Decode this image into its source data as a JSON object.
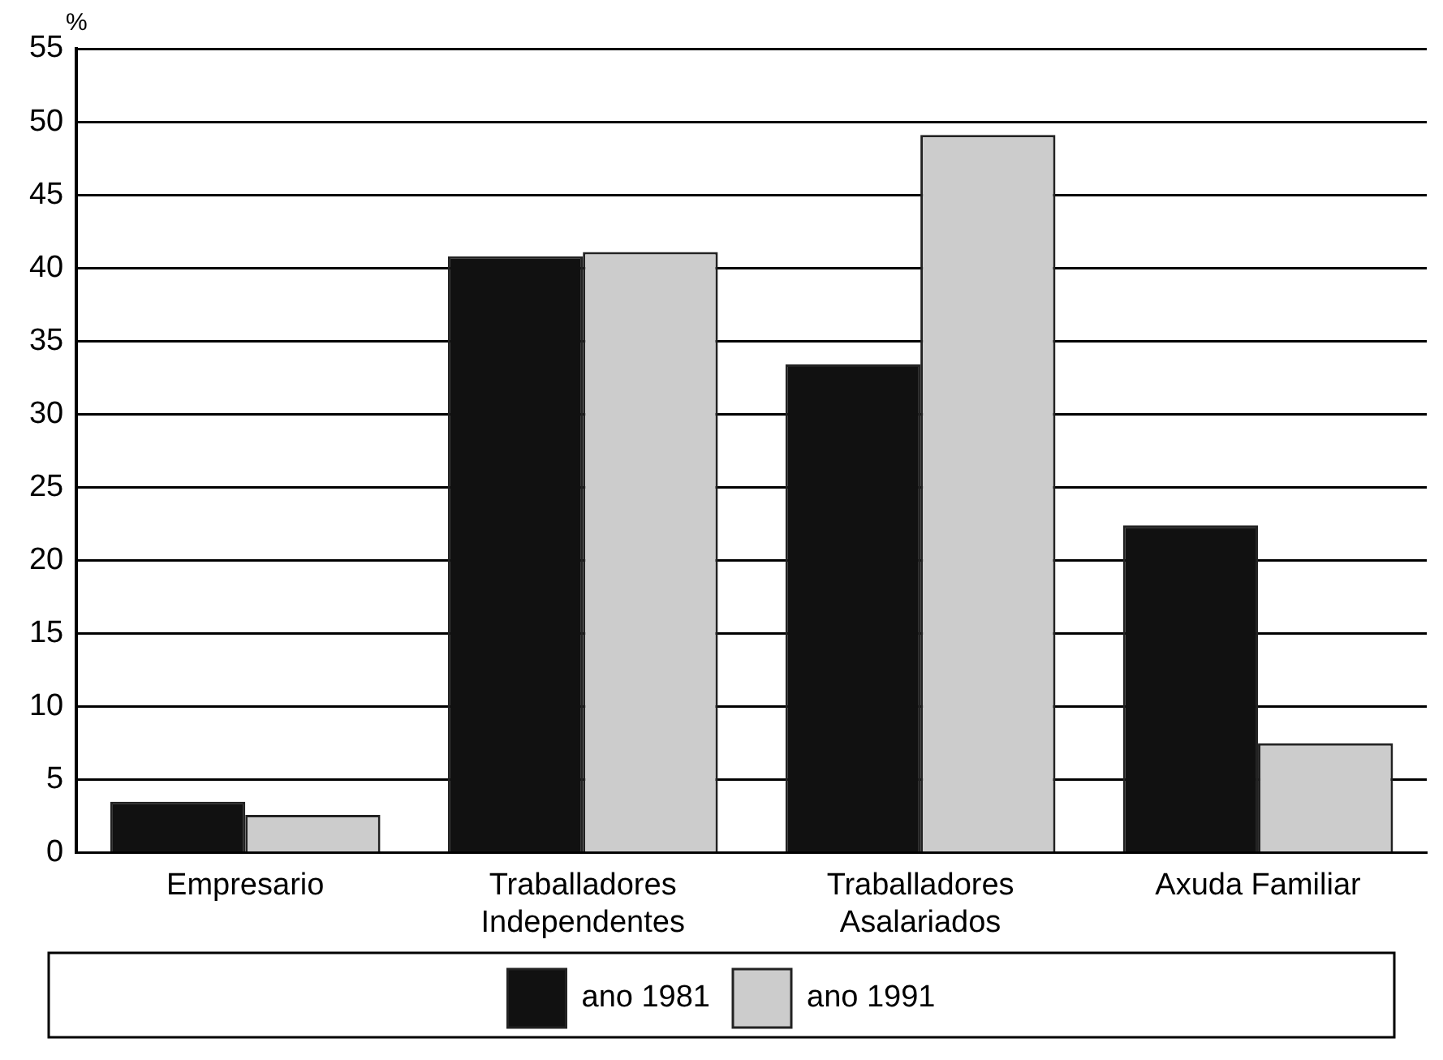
{
  "chart_data": {
    "type": "bar",
    "ylabel": "%",
    "categories": [
      "Empresario",
      "Traballadores Independentes",
      "Traballadores Asalariados",
      "Axuda Familiar"
    ],
    "series": [
      {
        "name": "ano 1981",
        "color": "#111111",
        "values": [
          3.5,
          40.8,
          33.4,
          22.4
        ]
      },
      {
        "name": "ano 1991",
        "color": "#cccccc",
        "values": [
          2.6,
          41.1,
          49.1,
          7.5
        ]
      }
    ],
    "ylim": [
      0,
      55
    ],
    "yticks": [
      0,
      5,
      10,
      15,
      20,
      25,
      30,
      35,
      40,
      45,
      50,
      55
    ],
    "grid": "y",
    "legend": "bottom"
  }
}
